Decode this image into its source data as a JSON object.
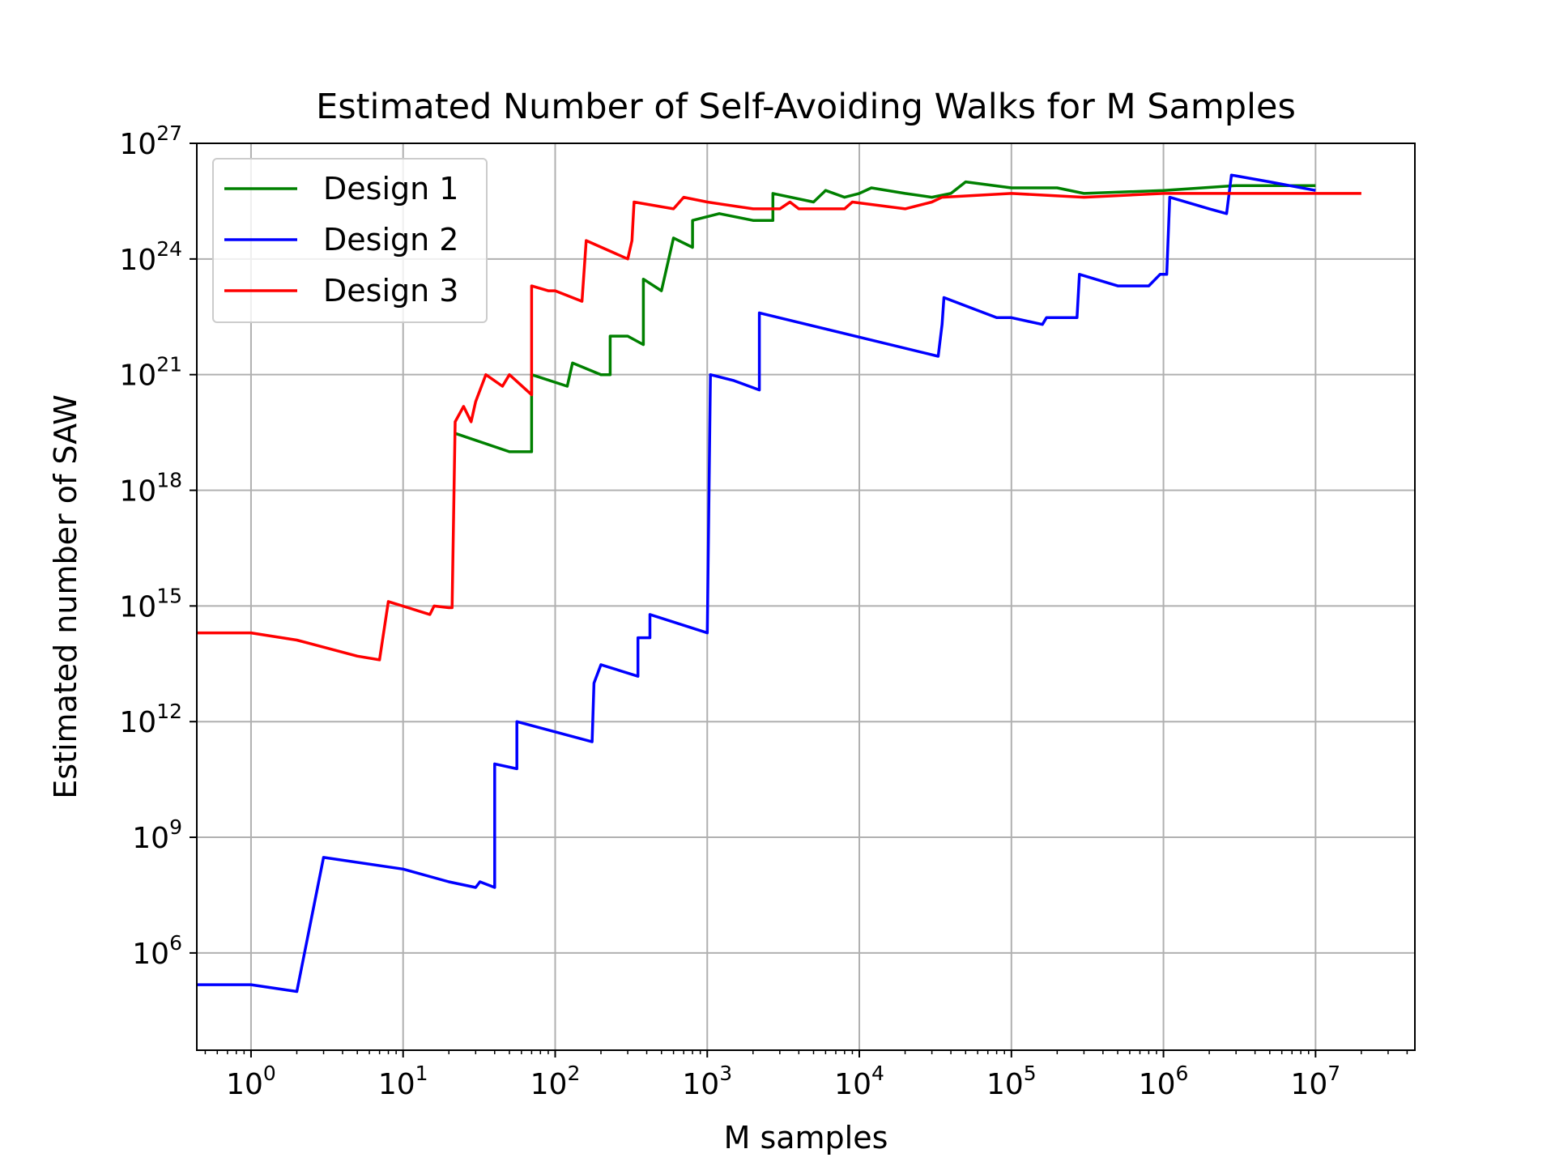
{
  "chart_data": {
    "type": "line",
    "title": "Estimated Number of Self-Avoiding Walks for M Samples",
    "xlabel": "M samples",
    "ylabel": "Estimated number of SAW",
    "x_scale": "log",
    "y_scale": "log",
    "xlim": [
      0.44,
      45000000
    ],
    "ylim": [
      3000.0,
      1e+27
    ],
    "x_ticks": [
      {
        "value": 1,
        "base": "10",
        "exp": "0"
      },
      {
        "value": 10,
        "base": "10",
        "exp": "1"
      },
      {
        "value": 100,
        "base": "10",
        "exp": "2"
      },
      {
        "value": 1000,
        "base": "10",
        "exp": "3"
      },
      {
        "value": 10000,
        "base": "10",
        "exp": "4"
      },
      {
        "value": 100000,
        "base": "10",
        "exp": "5"
      },
      {
        "value": 1000000,
        "base": "10",
        "exp": "6"
      },
      {
        "value": 10000000,
        "base": "10",
        "exp": "7"
      }
    ],
    "y_ticks": [
      {
        "value": 1000000.0,
        "base": "10",
        "exp": "6"
      },
      {
        "value": 1000000000.0,
        "base": "10",
        "exp": "9"
      },
      {
        "value": 1000000000000.0,
        "base": "10",
        "exp": "12"
      },
      {
        "value": 1000000000000000.0,
        "base": "10",
        "exp": "15"
      },
      {
        "value": 1e+18,
        "base": "10",
        "exp": "18"
      },
      {
        "value": 1e+21,
        "base": "10",
        "exp": "21"
      },
      {
        "value": 1e+24,
        "base": "10",
        "exp": "24"
      },
      {
        "value": 1e+27,
        "base": "10",
        "exp": "27"
      }
    ],
    "grid": true,
    "legend_position": "top-left",
    "series": [
      {
        "name": "Design 1",
        "color": "#008000",
        "points": [
          [
            22,
            3e+19
          ],
          [
            50,
            1e+19
          ],
          [
            70,
            1e+19
          ],
          [
            70,
            1e+21
          ],
          [
            120,
            5e+20
          ],
          [
            130,
            2e+21
          ],
          [
            200,
            1e+21
          ],
          [
            230,
            1e+21
          ],
          [
            230,
            1e+22
          ],
          [
            300,
            1e+22
          ],
          [
            380,
            6e+21
          ],
          [
            380,
            3e+23
          ],
          [
            500,
            1.5e+23
          ],
          [
            600,
            3.5e+24
          ],
          [
            800,
            2e+24
          ],
          [
            800,
            1e+25
          ],
          [
            1200,
            1.5e+25
          ],
          [
            2000,
            1e+25
          ],
          [
            2700,
            1e+25
          ],
          [
            2700,
            5e+25
          ],
          [
            5000,
            3e+25
          ],
          [
            6000,
            6e+25
          ],
          [
            8000,
            4e+25
          ],
          [
            10000,
            5e+25
          ],
          [
            12000,
            7e+25
          ],
          [
            20000,
            5e+25
          ],
          [
            30000,
            4e+25
          ],
          [
            40000,
            5e+25
          ],
          [
            50000,
            1e+26
          ],
          [
            100000,
            7e+25
          ],
          [
            200000,
            7e+25
          ],
          [
            300000,
            5e+25
          ],
          [
            1000000,
            6e+25
          ],
          [
            3000000,
            8e+25
          ],
          [
            10000000,
            8e+25
          ]
        ]
      },
      {
        "name": "Design 2",
        "color": "#0000ff",
        "points": [
          [
            0.44,
            150000.0
          ],
          [
            1,
            150000.0
          ],
          [
            2,
            100000.0
          ],
          [
            3,
            300000000.0
          ],
          [
            10,
            150000000.0
          ],
          [
            20,
            70000000.0
          ],
          [
            30,
            50000000.0
          ],
          [
            32,
            70000000.0
          ],
          [
            40,
            50000000.0
          ],
          [
            40,
            80000000000.0
          ],
          [
            56,
            60000000000.0
          ],
          [
            56,
            1000000000000.0
          ],
          [
            175,
            300000000000.0
          ],
          [
            180,
            10000000000000.0
          ],
          [
            200,
            30000000000000.0
          ],
          [
            350,
            15000000000000.0
          ],
          [
            350,
            150000000000000.0
          ],
          [
            420,
            150000000000000.0
          ],
          [
            420,
            600000000000000.0
          ],
          [
            1000,
            200000000000000.0
          ],
          [
            1050,
            1e+21
          ],
          [
            1500,
            7e+20
          ],
          [
            2200,
            4e+20
          ],
          [
            2200,
            4e+22
          ],
          [
            33000,
            3e+21
          ],
          [
            35000,
            2e+22
          ],
          [
            36000,
            1e+23
          ],
          [
            80000,
            3e+22
          ],
          [
            100000,
            3e+22
          ],
          [
            160000,
            2e+22
          ],
          [
            170000,
            3e+22
          ],
          [
            270000,
            3e+22
          ],
          [
            280000,
            4e+23
          ],
          [
            500000,
            2e+23
          ],
          [
            800000,
            2e+23
          ],
          [
            950000,
            4e+23
          ],
          [
            1050000,
            4e+23
          ],
          [
            1100000,
            4e+25
          ],
          [
            2000000,
            2e+25
          ],
          [
            2600000,
            1.5e+25
          ],
          [
            2800000,
            1.5e+26
          ],
          [
            5000000,
            1e+26
          ],
          [
            10000000,
            6e+25
          ]
        ]
      },
      {
        "name": "Design 3",
        "color": "#ff0000",
        "points": [
          [
            0.44,
            200000000000000.0
          ],
          [
            1,
            200000000000000.0
          ],
          [
            2,
            130000000000000.0
          ],
          [
            5,
            50000000000000.0
          ],
          [
            7,
            40000000000000.0
          ],
          [
            8,
            1300000000000000.0
          ],
          [
            15,
            600000000000000.0
          ],
          [
            16,
            1000000000000000.0
          ],
          [
            20,
            900000000000000.0
          ],
          [
            21,
            900000000000000.0
          ],
          [
            22,
            6e+19
          ],
          [
            25,
            1.5e+20
          ],
          [
            28,
            6e+19
          ],
          [
            30,
            2e+20
          ],
          [
            35,
            1e+21
          ],
          [
            45,
            5e+20
          ],
          [
            50,
            1e+21
          ],
          [
            70,
            3e+20
          ],
          [
            70,
            2e+23
          ],
          [
            90,
            1.5e+23
          ],
          [
            100,
            1.5e+23
          ],
          [
            150,
            8e+22
          ],
          [
            160,
            3e+24
          ],
          [
            300,
            1e+24
          ],
          [
            320,
            3e+24
          ],
          [
            330,
            3e+25
          ],
          [
            600,
            2e+25
          ],
          [
            700,
            4e+25
          ],
          [
            1000,
            3e+25
          ],
          [
            2000,
            2e+25
          ],
          [
            3000,
            2e+25
          ],
          [
            3500,
            3e+25
          ],
          [
            4000,
            2e+25
          ],
          [
            8000,
            2e+25
          ],
          [
            9000,
            3e+25
          ],
          [
            20000,
            2e+25
          ],
          [
            30000,
            3e+25
          ],
          [
            35000,
            4e+25
          ],
          [
            100000,
            5e+25
          ],
          [
            300000,
            4e+25
          ],
          [
            1000000,
            5e+25
          ],
          [
            3000000,
            5e+25
          ],
          [
            20000000,
            5e+25
          ]
        ]
      }
    ]
  }
}
